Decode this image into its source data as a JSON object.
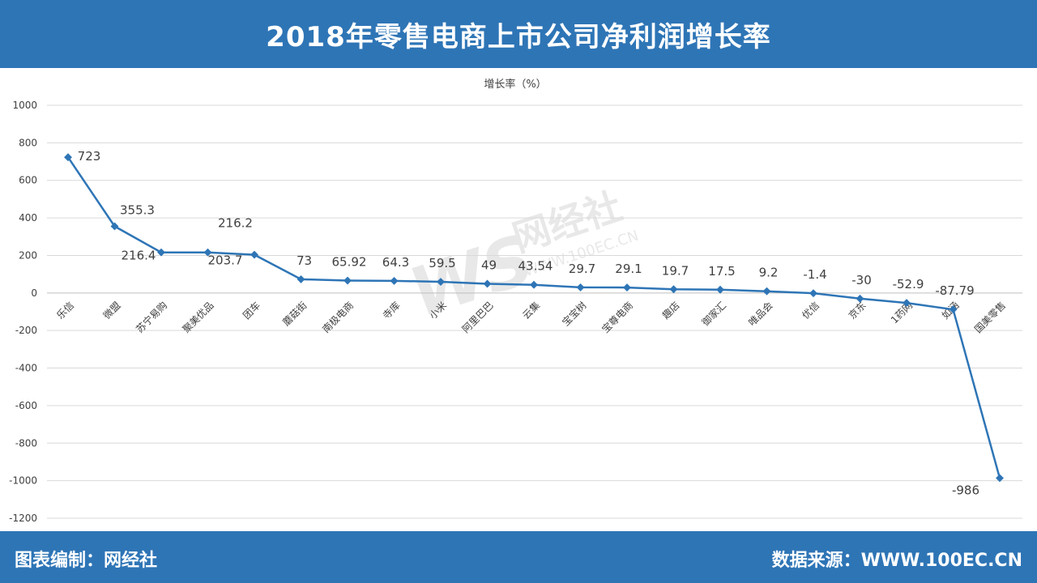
{
  "header": {
    "title": "2018年零售电商上市公司净利润增长率"
  },
  "footer": {
    "credit": "图表编制：网经社",
    "source": "数据来源：WWW.100EC.CN"
  },
  "watermark": {
    "logo": "WS",
    "name": "网经社",
    "url": "WWW.100EC.CN"
  },
  "colors": {
    "header": "#2e75b6",
    "line": "#2e75b6",
    "grid": "#d9d9d9"
  },
  "chart_data": {
    "type": "line",
    "title": "",
    "ylabel": "增长率（%）",
    "xlabel": "",
    "ylim": [
      -1200,
      1000
    ],
    "yticks": [
      1000,
      800,
      600,
      400,
      200,
      0,
      -200,
      -400,
      -600,
      -800,
      -1000,
      -1200
    ],
    "grid": true,
    "legend": "none",
    "categories": [
      "乐信",
      "微盟",
      "苏宁易购",
      "聚美优品",
      "团车",
      "蘑菇街",
      "南极电商",
      "寺库",
      "小米",
      "阿里巴巴",
      "云集",
      "宝宝树",
      "宝尊电商",
      "趣店",
      "御家汇",
      "唯品会",
      "优信",
      "京东",
      "1药网",
      "如涵",
      "国美零售"
    ],
    "series": [
      {
        "values": [
          723,
          355.3,
          216.4,
          216.2,
          203.7,
          73,
          65.92,
          64.3,
          59.5,
          49,
          43.54,
          29.7,
          29.1,
          19.7,
          17.5,
          9.2,
          -1.4,
          -30,
          -52.9,
          -87.79,
          -986
        ],
        "labels": [
          "723",
          "355.3",
          "216.4",
          "216.2",
          "203.7",
          "73",
          "65.92",
          "64.3",
          "59.5",
          "49",
          "43.54",
          "29.7",
          "29.1",
          "19.7",
          "17.5",
          "9.2",
          "-1.4",
          "-30",
          "-52.9",
          "-87.79",
          "-986"
        ]
      }
    ]
  }
}
